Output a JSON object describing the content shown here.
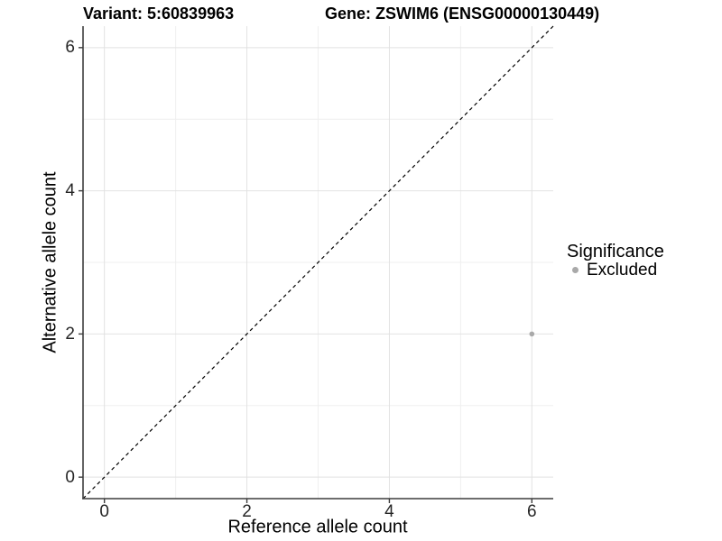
{
  "chart_data": {
    "type": "scatter",
    "title_left": "Variant: 5:60839963",
    "title_right": "Gene: ZSWIM6 (ENSG00000130449)",
    "xlabel": "Reference allele count",
    "ylabel": "Alternative allele count",
    "xlim": [
      -0.3,
      6.3
    ],
    "ylim": [
      -0.3,
      6.3
    ],
    "x_ticks": [
      0,
      2,
      4,
      6
    ],
    "y_ticks": [
      0,
      2,
      4,
      6
    ],
    "x_minor_ticks": [
      1,
      3,
      5
    ],
    "y_minor_ticks": [
      1,
      3,
      5
    ],
    "grid": "on",
    "identity_line": {
      "style": "dashed",
      "color": "#000000",
      "from": -0.3,
      "to": 6.3
    },
    "series": [
      {
        "name": "Excluded",
        "color": "#a9a9a9",
        "point_radius": 2.8,
        "points": [
          [
            6,
            2
          ]
        ]
      }
    ],
    "legend": {
      "title": "Significance",
      "position": "right",
      "entries": [
        {
          "label": "Excluded",
          "color": "#a9a9a9"
        }
      ]
    },
    "style": {
      "grid_major_color": "#e2e2e2",
      "grid_minor_color": "#efefef",
      "axis_line_color": "#3d3d3d",
      "tick_mark_color": "#3d3d3d",
      "background": "#ffffff"
    }
  }
}
